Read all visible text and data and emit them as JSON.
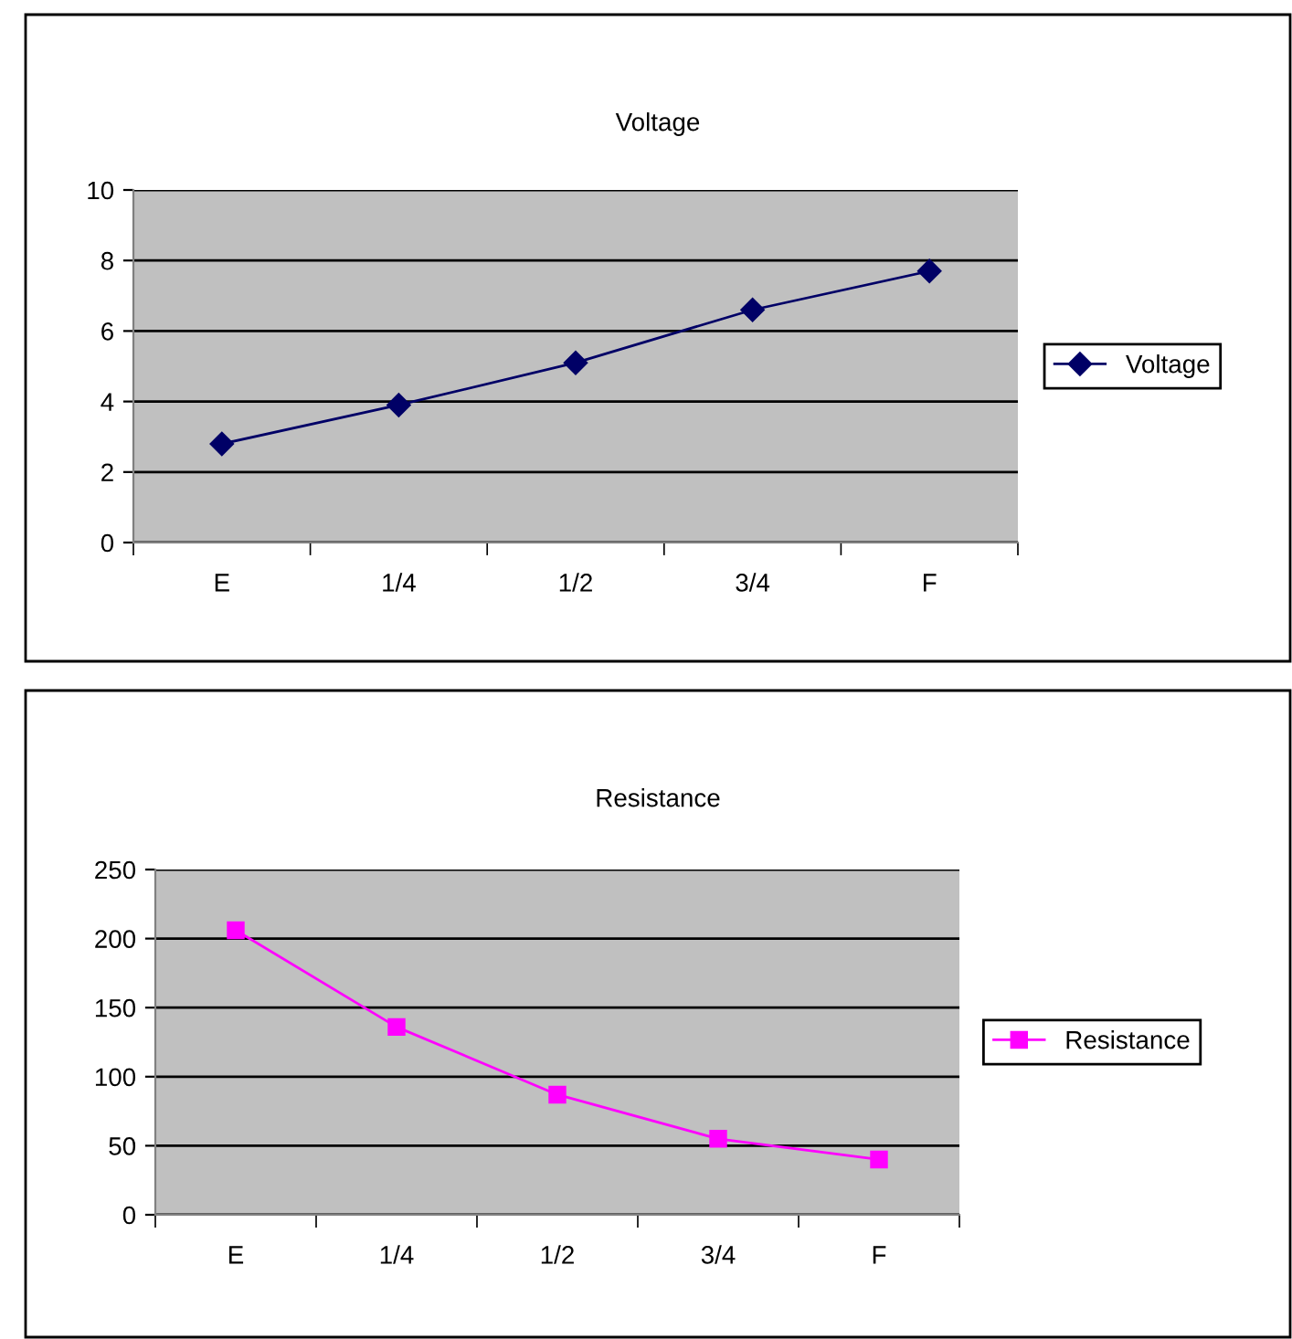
{
  "chart_data": [
    {
      "type": "line",
      "title": "Voltage",
      "categories": [
        "E",
        "1/4",
        "1/2",
        "3/4",
        "F"
      ],
      "series": [
        {
          "name": "Voltage",
          "color": "#000066",
          "values": [
            2.8,
            3.9,
            5.1,
            6.6,
            7.7
          ]
        }
      ],
      "ylim": [
        0,
        10
      ],
      "yticks": [
        0,
        2,
        4,
        6,
        8,
        10
      ],
      "grid": "y",
      "legend": "right",
      "marker": "diamond",
      "line_style": "solid"
    },
    {
      "type": "line",
      "title": "Resistance",
      "categories": [
        "E",
        "1/4",
        "1/2",
        "3/4",
        "F"
      ],
      "series": [
        {
          "name": "Resistance",
          "color": "#ff00ff",
          "values": [
            206,
            136,
            87,
            55,
            40
          ]
        }
      ],
      "ylim": [
        0,
        250
      ],
      "yticks": [
        0,
        50,
        100,
        150,
        200,
        250
      ],
      "grid": "y",
      "legend": "right",
      "marker": "square",
      "line_style": "solid"
    }
  ]
}
